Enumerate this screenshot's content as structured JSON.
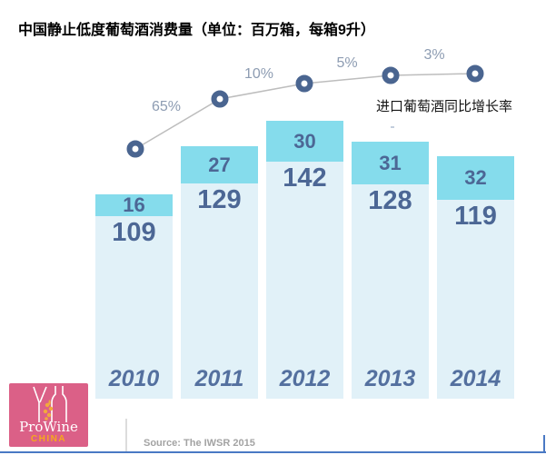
{
  "title": "中国静止低度葡萄酒消费量（单位：百万箱，每箱9升）",
  "growth_label": "进口葡萄酒同比增长率",
  "source": "Source: The IWSR 2015",
  "logo": {
    "line1": "ProWine",
    "line2": "CHINA",
    "bg_color": "#db6087",
    "name_color": "#ffffff",
    "sub_color": "#f5a81c"
  },
  "colors": {
    "bar_top": "#85dcec",
    "bar_bottom": "#e1f1f8",
    "value_text": "#4c6795",
    "year_text": "#54709f",
    "marker": "#4a6590",
    "line": "#bdbdbd",
    "pct_text": "#8d9cb2",
    "bottom_border": "#4a79c4"
  },
  "chart_data": {
    "type": "bar",
    "title": "中国静止低度葡萄酒消费量（单位：百万箱，每箱9升）",
    "categories": [
      "2010",
      "2011",
      "2012",
      "2013",
      "2014"
    ],
    "series": [
      {
        "name": "top-segment",
        "color": "#85dcec",
        "values": [
          16,
          27,
          30,
          31,
          32
        ]
      },
      {
        "name": "bottom-segment",
        "color": "#e1f1f8",
        "values": [
          109,
          129,
          142,
          128,
          119
        ]
      }
    ],
    "line_overlay": {
      "name": "进口葡萄酒同比增长率",
      "labels": [
        "65%",
        "10%",
        "5%",
        "3%"
      ],
      "label_positions": "between consecutive year markers"
    },
    "ylabel": "",
    "xlabel": "",
    "grid": false,
    "legend_position": "none",
    "source": "Source: The IWSR 2015"
  }
}
